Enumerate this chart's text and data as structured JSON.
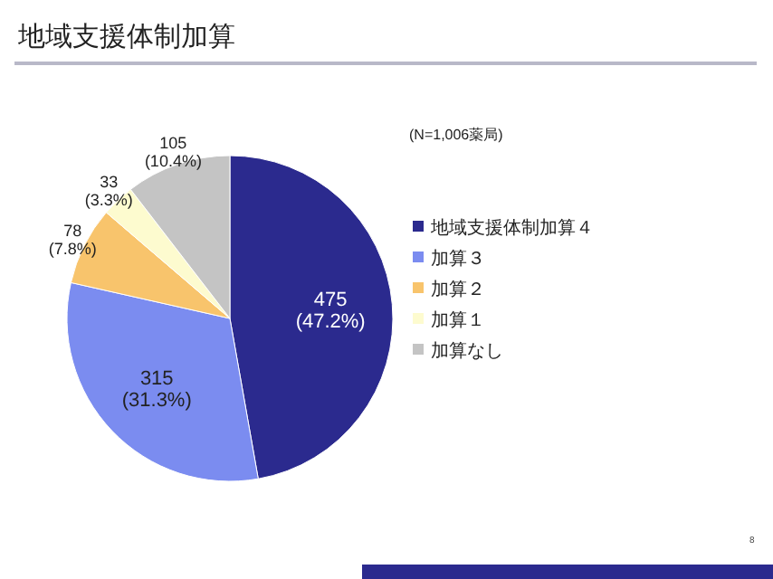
{
  "chart_data": {
    "type": "pie",
    "title": "地域支援体制加算",
    "categories": [
      "地域支援体制加算４",
      "加算３",
      "加算２",
      "加算１",
      "加算なし"
    ],
    "values": [
      475,
      315,
      78,
      33,
      105
    ],
    "colors": [
      "#2b2a8e",
      "#7b8cf0",
      "#f8c46c",
      "#fdfbcf",
      "#c4c4c4"
    ],
    "value_labels": [
      "475\n(47.2%)",
      "315\n(31.3%)",
      "78\n(7.8%)",
      "33\n(3.3%)",
      "105\n(10.4%)"
    ],
    "legend": "right",
    "annotations": [
      "(N=1,006薬局)",
      "8"
    ]
  }
}
